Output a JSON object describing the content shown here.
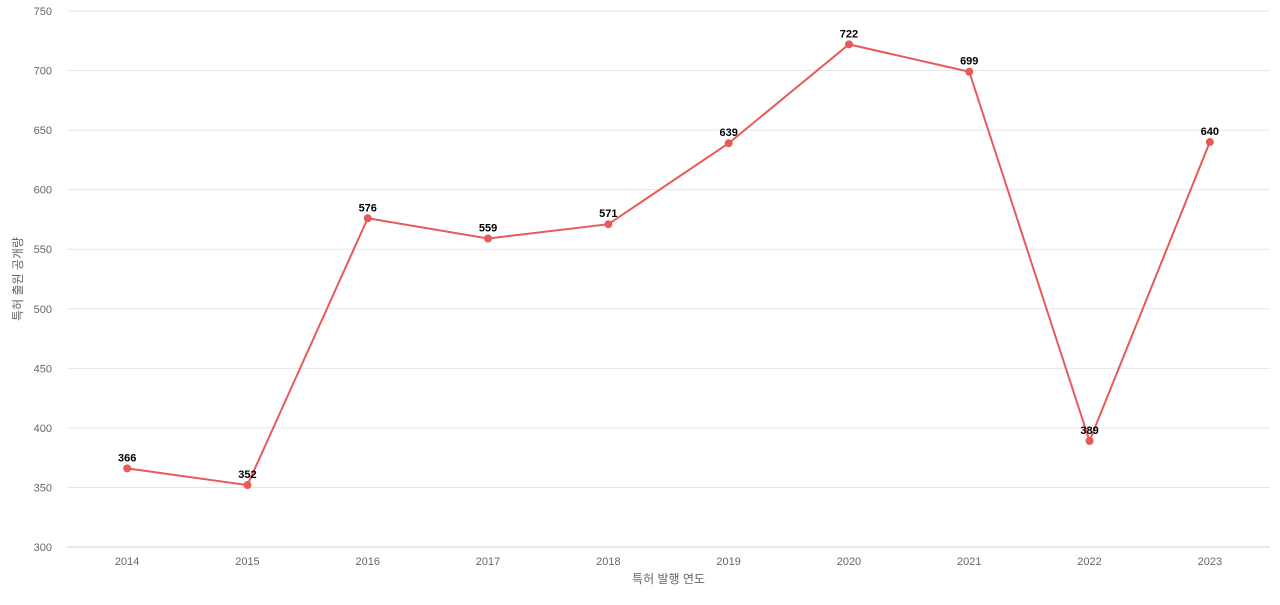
{
  "chart_data": {
    "type": "line",
    "title": "",
    "xlabel": "특허 발행 연도",
    "ylabel": "특허 출원 공개량",
    "categories": [
      "2014",
      "2015",
      "2016",
      "2017",
      "2018",
      "2019",
      "2020",
      "2021",
      "2022",
      "2023"
    ],
    "series": [
      {
        "values": [
          366,
          352,
          576,
          559,
          571,
          639,
          722,
          699,
          389,
          640
        ],
        "color": "#e85a5a"
      }
    ],
    "ylim": [
      300,
      750
    ],
    "yticks": [
      300,
      350,
      400,
      450,
      500,
      550,
      600,
      650,
      700,
      750
    ],
    "grid": true,
    "legend": "none",
    "data_labels": true
  }
}
